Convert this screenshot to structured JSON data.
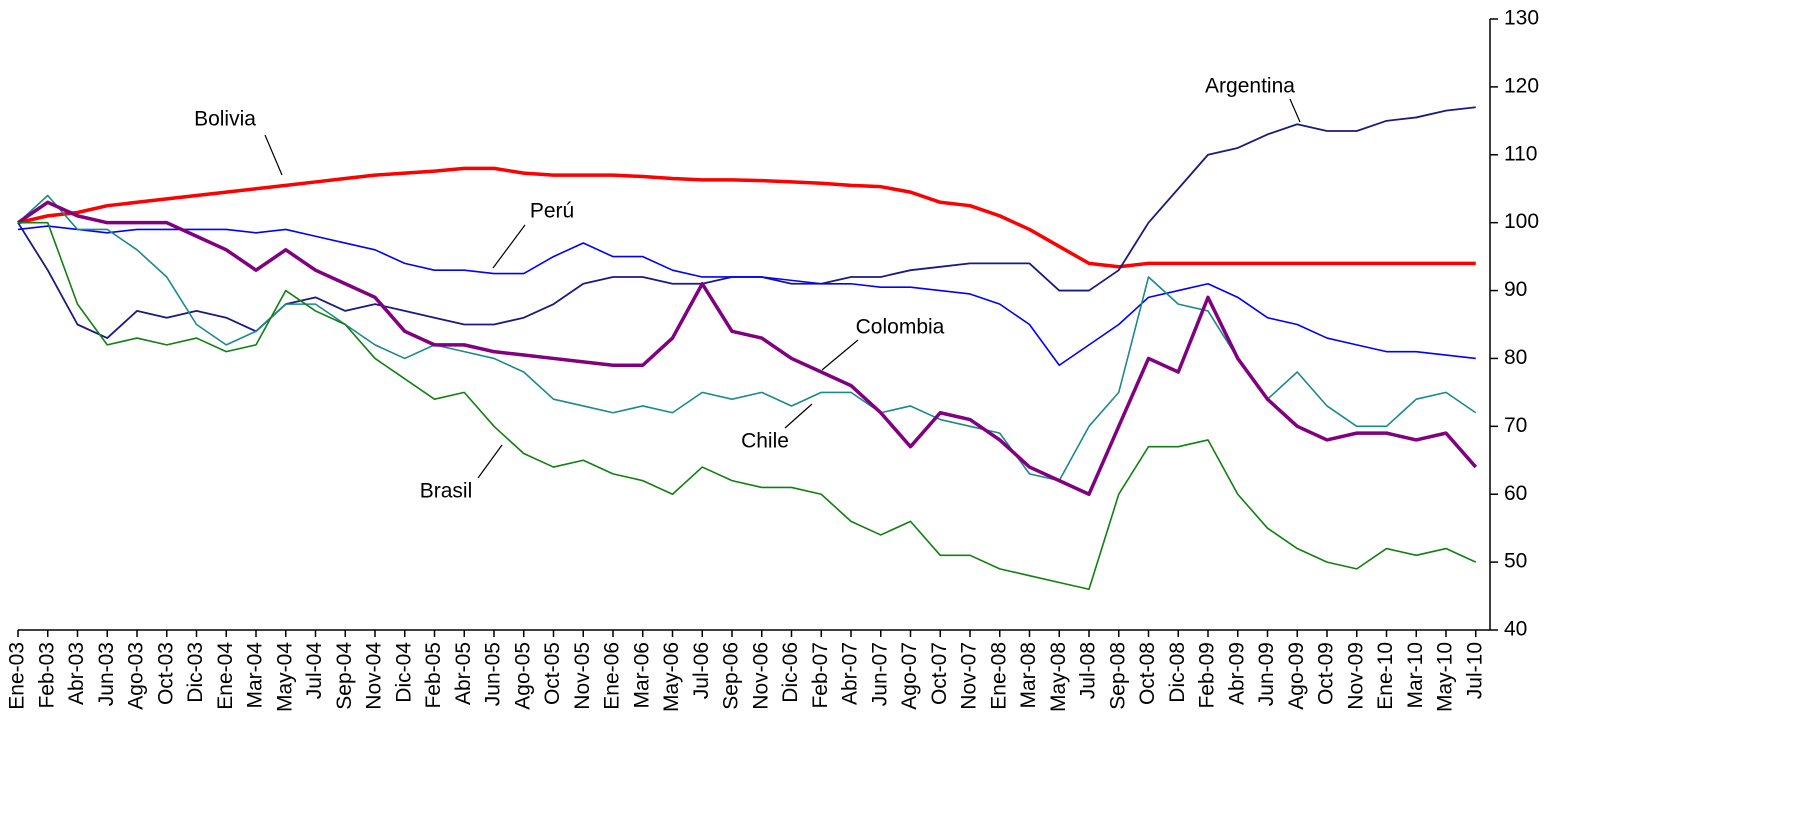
{
  "chart_data": {
    "type": "line",
    "categories": [
      "Ene-03",
      "Feb-03",
      "Abr-03",
      "Jun-03",
      "Ago-03",
      "Oct-03",
      "Dic-03",
      "Ene-04",
      "Mar-04",
      "May-04",
      "Jul-04",
      "Sep-04",
      "Nov-04",
      "Dic-04",
      "Feb-05",
      "Abr-05",
      "Jun-05",
      "Ago-05",
      "Oct-05",
      "Nov-05",
      "Ene-06",
      "Mar-06",
      "May-06",
      "Jul-06",
      "Sep-06",
      "Nov-06",
      "Dic-06",
      "Feb-07",
      "Abr-07",
      "Jun-07",
      "Ago-07",
      "Oct-07",
      "Nov-07",
      "Ene-08",
      "Mar-08",
      "May-08",
      "Jul-08",
      "Sep-08",
      "Oct-08",
      "Dic-08",
      "Feb-09",
      "Abr-09",
      "Jun-09",
      "Ago-09",
      "Oct-09",
      "Nov-09",
      "Ene-10",
      "Mar-10",
      "May-10",
      "Jul-10"
    ],
    "series": [
      {
        "name": "Bolivia",
        "color": "#ff0000",
        "values": [
          100,
          101,
          101.5,
          102.5,
          103,
          103.5,
          104,
          104.5,
          105,
          105.5,
          106,
          106.5,
          107,
          107.3,
          107.6,
          108,
          108,
          107.3,
          107,
          107,
          107,
          106.8,
          106.5,
          106.3,
          106.3,
          106.2,
          106,
          105.8,
          105.5,
          105.3,
          104.5,
          103,
          102.5,
          101,
          99,
          96.5,
          94,
          93.5,
          94,
          94,
          94,
          94,
          94,
          94,
          94,
          94,
          94,
          94,
          94,
          94
        ]
      },
      {
        "name": "Argentina",
        "color": "#1a1a80",
        "values": [
          100,
          93,
          85,
          83,
          87,
          86,
          87,
          86,
          84,
          88,
          89,
          87,
          88,
          87,
          86,
          85,
          85,
          86,
          88,
          91,
          92,
          92,
          91,
          91,
          92,
          92,
          91,
          91,
          92,
          92,
          93,
          93.5,
          94,
          94,
          94,
          90,
          90,
          93,
          100,
          105,
          110,
          111,
          113,
          114.5,
          113.5,
          113.5,
          115,
          115.5,
          116.5,
          117
        ]
      },
      {
        "name": "Perú",
        "color": "#0000ff",
        "values": [
          99,
          99.5,
          99,
          98.5,
          99,
          99,
          99,
          99,
          98.5,
          99,
          98,
          97,
          96,
          94,
          93,
          93,
          92.5,
          92.5,
          95,
          97,
          95,
          95,
          93,
          92,
          92,
          92,
          91.5,
          91,
          91,
          90.5,
          90.5,
          90,
          89.5,
          88,
          85,
          79,
          82,
          85,
          89,
          90,
          91,
          89,
          86,
          85,
          83,
          82,
          81,
          81,
          80.5,
          80
        ]
      },
      {
        "name": "Chile",
        "color": "#1a8a8a",
        "values": [
          100,
          104,
          99,
          99,
          96,
          92,
          85,
          82,
          84,
          88,
          88,
          85,
          82,
          80,
          82,
          81,
          80,
          78,
          74,
          73,
          72,
          73,
          72,
          75,
          74,
          75,
          73,
          75,
          75,
          72,
          73,
          71,
          70,
          69,
          63,
          62,
          70,
          75,
          92,
          88,
          87,
          80,
          74,
          78,
          73,
          70,
          70,
          74,
          75,
          72
        ]
      },
      {
        "name": "Colombia",
        "color": "#800080",
        "values": [
          100,
          103,
          101,
          100,
          100,
          100,
          98,
          96,
          93,
          96,
          93,
          91,
          89,
          84,
          82,
          82,
          81,
          80.5,
          80,
          79.5,
          79,
          79,
          83,
          91,
          84,
          83,
          80,
          78,
          76,
          72,
          67,
          72,
          71,
          68,
          64,
          62,
          60,
          70,
          80,
          78,
          89,
          80,
          74,
          70,
          68,
          69,
          69,
          68,
          69,
          64
        ]
      },
      {
        "name": "Brasil",
        "color": "#118011",
        "values": [
          100,
          100,
          88,
          82,
          83,
          82,
          83,
          81,
          82,
          90,
          87,
          85,
          80,
          77,
          74,
          75,
          70,
          66,
          64,
          65,
          63,
          62,
          60,
          64,
          62,
          61,
          61,
          60,
          56,
          54,
          56,
          51,
          51,
          49,
          48,
          47,
          46,
          60,
          67,
          67,
          68,
          60,
          55,
          52,
          50,
          49,
          52,
          51,
          52,
          50
        ]
      }
    ],
    "ylim": [
      40,
      130
    ],
    "yticks": [
      40,
      50,
      60,
      70,
      80,
      90,
      100,
      110,
      120,
      130
    ],
    "y_axis_side": "right"
  }
}
